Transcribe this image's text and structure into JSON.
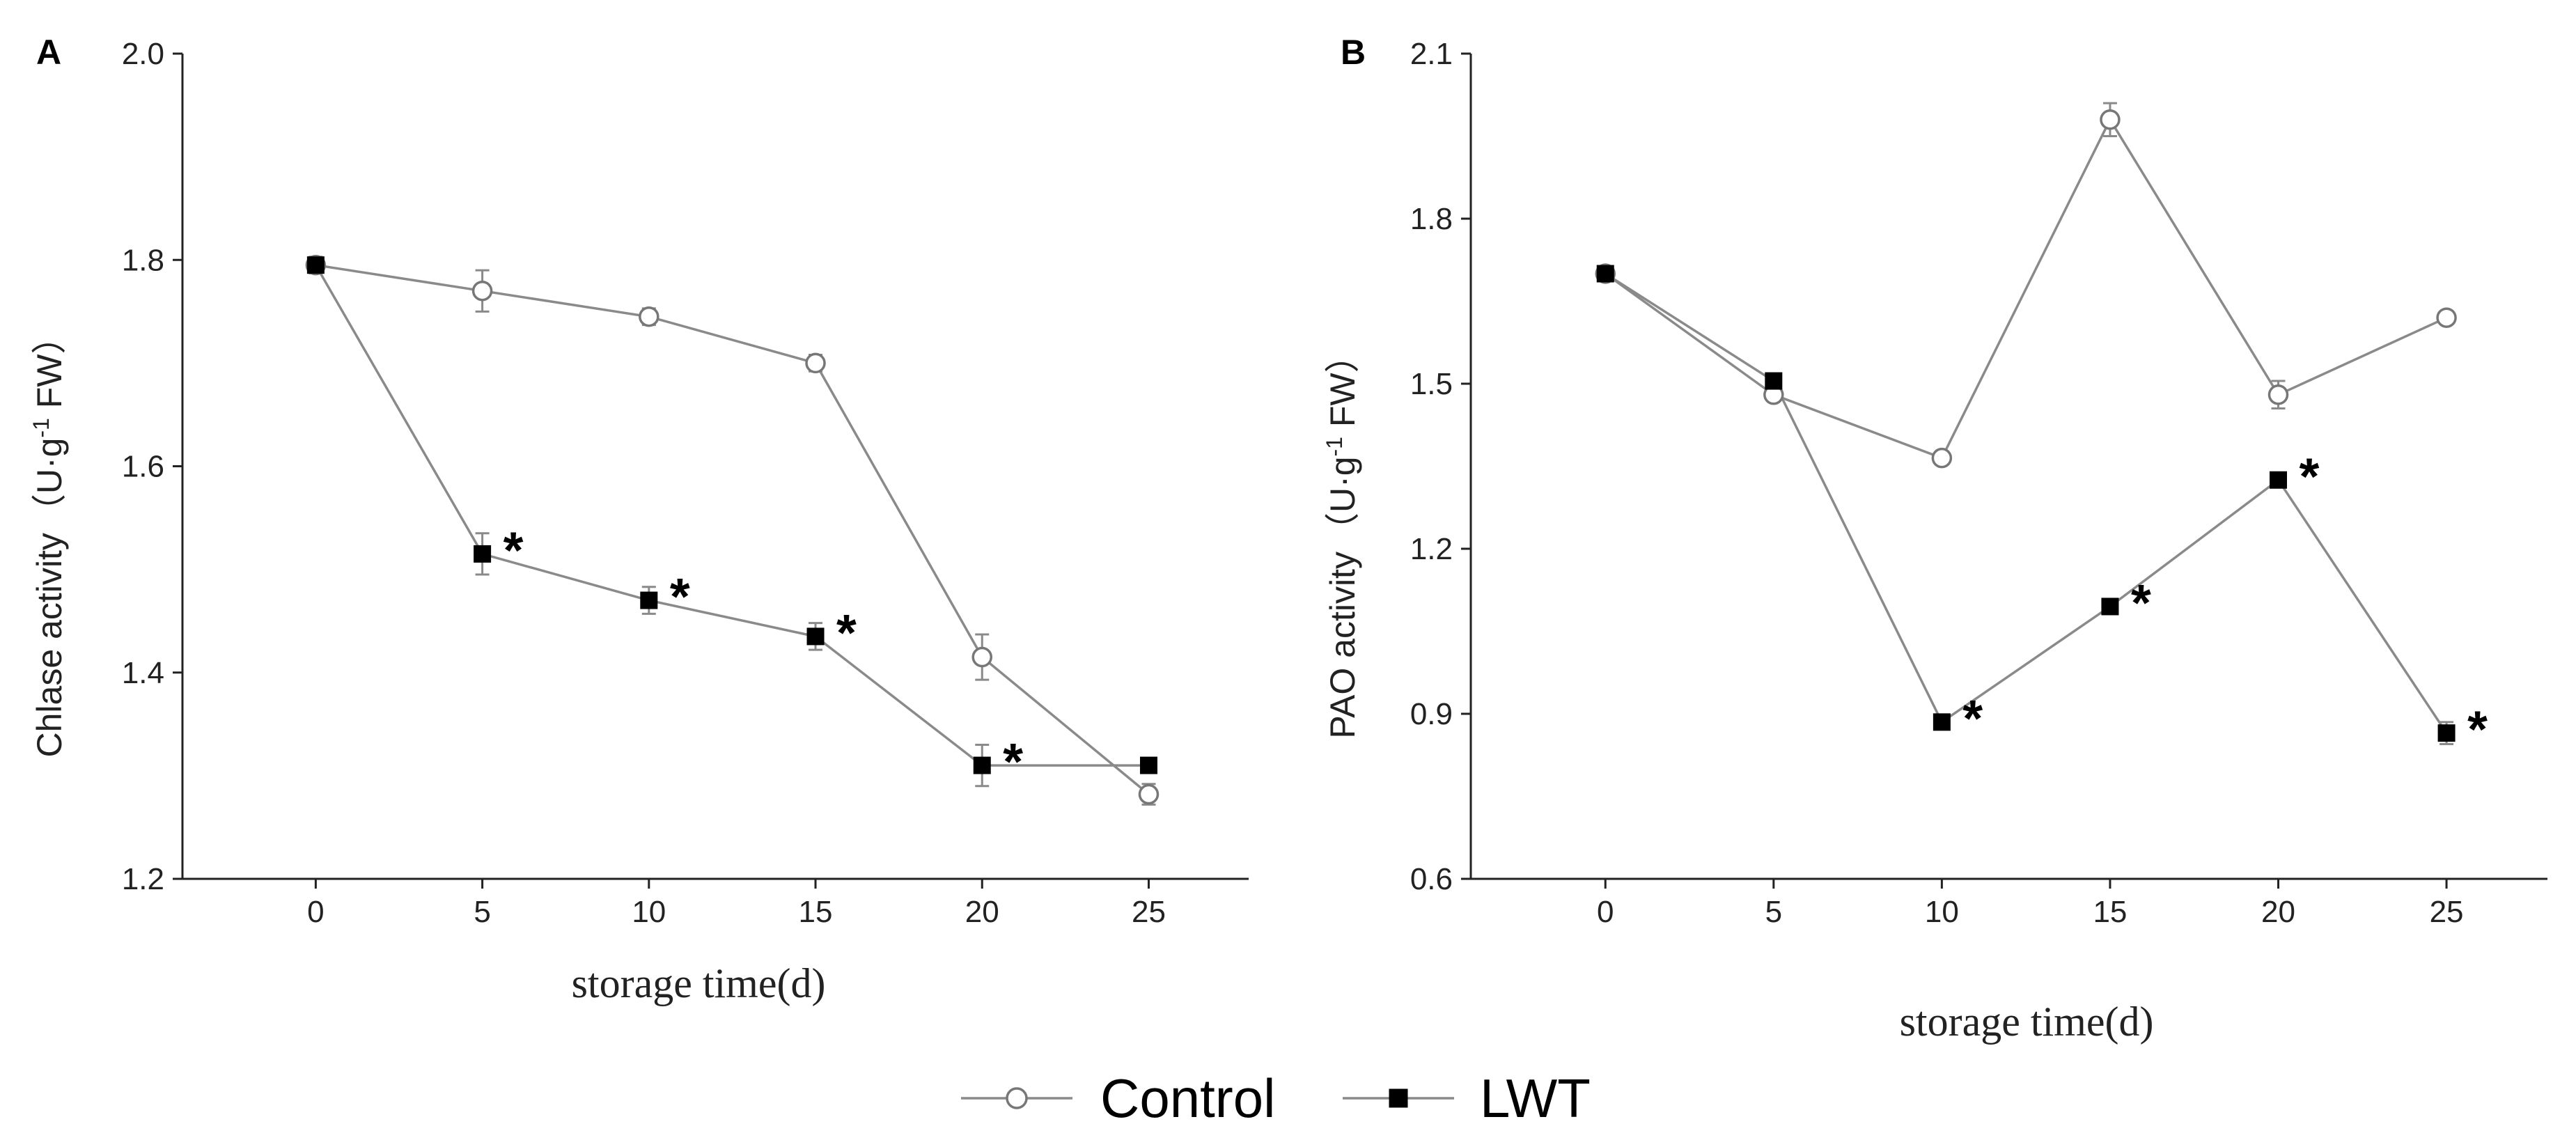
{
  "chart_data": [
    {
      "type": "line",
      "panel": "A",
      "title": "",
      "xlabel": "storage time(d)",
      "ylabel": "Chlase activity（U·g⁻¹ FW）",
      "ylabel_main": "Chlase activity",
      "ylabel_unit_open": "（U·g",
      "ylabel_unit_exp": "-1",
      "ylabel_unit_close": " FW）",
      "x": [
        0,
        5,
        10,
        15,
        20,
        25
      ],
      "xlim": [
        -4,
        28
      ],
      "ylim": [
        1.2,
        2.0
      ],
      "yticks": [
        1.2,
        1.4,
        1.6,
        1.8,
        2.0
      ],
      "yticks_labels": [
        "1.2",
        "1.4",
        "1.6",
        "1.8",
        "2.0"
      ],
      "xticks_labels": [
        "0",
        "5",
        "10",
        "15",
        "20",
        "25"
      ],
      "series": [
        {
          "name": "Control",
          "marker": "open-circle",
          "values": [
            1.795,
            1.77,
            1.745,
            1.7,
            1.415,
            1.282
          ],
          "errors": [
            0.008,
            0.02,
            0.008,
            0.008,
            0.022,
            0.01
          ]
        },
        {
          "name": "LWT",
          "marker": "filled-square",
          "values": [
            1.795,
            1.515,
            1.47,
            1.435,
            1.31,
            1.31
          ],
          "errors": [
            0.006,
            0.02,
            0.013,
            0.013,
            0.02,
            0.006
          ]
        }
      ],
      "significance": [
        "",
        "*",
        "*",
        "*",
        "*",
        ""
      ]
    },
    {
      "type": "line",
      "panel": "B",
      "title": "",
      "xlabel": "storage time(d)",
      "ylabel": "PAO activity（U·g⁻¹ FW）",
      "ylabel_main": "PAO activity",
      "ylabel_unit_open": "（U·g",
      "ylabel_unit_exp": "-1",
      "ylabel_unit_close": " FW）",
      "x": [
        0,
        5,
        10,
        15,
        20,
        25
      ],
      "xlim": [
        -4,
        28
      ],
      "ylim": [
        0.6,
        2.1
      ],
      "yticks": [
        0.6,
        0.9,
        1.2,
        1.5,
        1.8,
        2.1
      ],
      "yticks_labels": [
        "0.6",
        "0.9",
        "1.2",
        "1.5",
        "1.8",
        "2.1"
      ],
      "xticks_labels": [
        "0",
        "5",
        "10",
        "15",
        "20",
        "25"
      ],
      "series": [
        {
          "name": "Control",
          "marker": "open-circle",
          "values": [
            1.7,
            1.48,
            1.365,
            1.98,
            1.48,
            1.62
          ],
          "errors": [
            0.01,
            0.01,
            0.01,
            0.03,
            0.025,
            0.01
          ]
        },
        {
          "name": "LWT",
          "marker": "filled-square",
          "values": [
            1.7,
            1.505,
            0.885,
            1.095,
            1.325,
            0.865
          ],
          "errors": [
            0.01,
            0.01,
            0.01,
            0.01,
            0.01,
            0.02
          ]
        }
      ],
      "significance": [
        "",
        "",
        "*",
        "*",
        "*",
        "*"
      ]
    }
  ],
  "legend": {
    "placement": "bottom-center",
    "entries": [
      {
        "label": "Control",
        "marker": "open-circle"
      },
      {
        "label": "LWT",
        "marker": "filled-square"
      }
    ]
  },
  "colors": {
    "line": "#8a8a8a",
    "open_marker_stroke": "#777777",
    "filled_marker": "#000000",
    "axis": "#222222"
  }
}
